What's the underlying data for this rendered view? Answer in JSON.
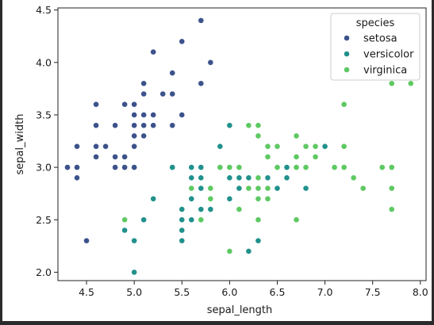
{
  "chart_data": {
    "type": "scatter",
    "xlabel": "sepal_length",
    "ylabel": "sepal_width",
    "xlim": [
      4.2,
      8.06
    ],
    "ylim": [
      1.92,
      4.52
    ],
    "xticks": [
      4.5,
      5.0,
      5.5,
      6.0,
      6.5,
      7.0,
      7.5,
      8.0
    ],
    "yticks": [
      2.0,
      2.5,
      3.0,
      3.5,
      4.0,
      4.5
    ],
    "xtick_labels": [
      "4.5",
      "5.0",
      "5.5",
      "6.0",
      "6.5",
      "7.0",
      "7.5",
      "8.0"
    ],
    "ytick_labels": [
      "2.0",
      "2.5",
      "3.0",
      "3.5",
      "4.0",
      "4.5"
    ],
    "grid": false,
    "legend": {
      "title": "species",
      "placement": "top-right"
    },
    "series": [
      {
        "name": "setosa",
        "color": "#3b528b",
        "points": [
          [
            4.3,
            3.0
          ],
          [
            4.4,
            3.2
          ],
          [
            4.4,
            3.0
          ],
          [
            4.4,
            2.9
          ],
          [
            4.5,
            2.3
          ],
          [
            4.6,
            3.6
          ],
          [
            4.6,
            3.4
          ],
          [
            4.6,
            3.2
          ],
          [
            4.6,
            3.1
          ],
          [
            4.7,
            3.2
          ],
          [
            4.8,
            3.4
          ],
          [
            4.8,
            3.1
          ],
          [
            4.8,
            3.0
          ],
          [
            4.9,
            3.6
          ],
          [
            4.9,
            3.1
          ],
          [
            4.9,
            3.0
          ],
          [
            5.0,
            3.6
          ],
          [
            5.0,
            3.5
          ],
          [
            5.0,
            3.4
          ],
          [
            5.0,
            3.3
          ],
          [
            5.0,
            3.2
          ],
          [
            5.0,
            3.0
          ],
          [
            5.1,
            3.8
          ],
          [
            5.1,
            3.7
          ],
          [
            5.1,
            3.5
          ],
          [
            5.1,
            3.4
          ],
          [
            5.1,
            3.3
          ],
          [
            5.2,
            4.1
          ],
          [
            5.2,
            3.5
          ],
          [
            5.2,
            3.4
          ],
          [
            5.3,
            3.7
          ],
          [
            5.4,
            3.9
          ],
          [
            5.4,
            3.7
          ],
          [
            5.4,
            3.4
          ],
          [
            5.5,
            4.2
          ],
          [
            5.5,
            3.5
          ],
          [
            5.7,
            4.4
          ],
          [
            5.7,
            3.8
          ],
          [
            5.8,
            4.0
          ]
        ]
      },
      {
        "name": "versicolor",
        "color": "#21918c",
        "points": [
          [
            4.9,
            2.4
          ],
          [
            5.0,
            2.3
          ],
          [
            5.0,
            2.0
          ],
          [
            5.1,
            2.5
          ],
          [
            5.2,
            2.7
          ],
          [
            5.4,
            3.0
          ],
          [
            5.5,
            2.6
          ],
          [
            5.5,
            2.5
          ],
          [
            5.5,
            2.4
          ],
          [
            5.5,
            2.3
          ],
          [
            5.6,
            3.0
          ],
          [
            5.6,
            2.9
          ],
          [
            5.6,
            2.7
          ],
          [
            5.6,
            2.5
          ],
          [
            5.7,
            3.0
          ],
          [
            5.7,
            2.9
          ],
          [
            5.7,
            2.8
          ],
          [
            5.7,
            2.6
          ],
          [
            5.8,
            2.7
          ],
          [
            5.8,
            2.6
          ],
          [
            5.9,
            3.2
          ],
          [
            5.9,
            3.0
          ],
          [
            6.0,
            3.4
          ],
          [
            6.0,
            2.9
          ],
          [
            6.0,
            2.7
          ],
          [
            6.0,
            2.2
          ],
          [
            6.1,
            3.0
          ],
          [
            6.1,
            2.9
          ],
          [
            6.1,
            2.8
          ],
          [
            6.2,
            2.9
          ],
          [
            6.2,
            2.2
          ],
          [
            6.3,
            3.3
          ],
          [
            6.3,
            2.5
          ],
          [
            6.3,
            2.3
          ],
          [
            6.4,
            3.2
          ],
          [
            6.4,
            2.9
          ],
          [
            6.5,
            2.8
          ],
          [
            6.6,
            3.0
          ],
          [
            6.6,
            2.9
          ],
          [
            6.7,
            3.1
          ],
          [
            6.7,
            3.0
          ],
          [
            6.8,
            2.8
          ],
          [
            6.9,
            3.1
          ],
          [
            7.0,
            3.2
          ]
        ]
      },
      {
        "name": "virginica",
        "color": "#5ec962",
        "points": [
          [
            4.9,
            2.5
          ],
          [
            5.6,
            2.8
          ],
          [
            5.7,
            2.5
          ],
          [
            5.8,
            2.8
          ],
          [
            5.8,
            2.7
          ],
          [
            5.9,
            3.0
          ],
          [
            6.0,
            3.0
          ],
          [
            6.0,
            2.2
          ],
          [
            6.1,
            3.0
          ],
          [
            6.1,
            2.6
          ],
          [
            6.2,
            3.4
          ],
          [
            6.2,
            2.8
          ],
          [
            6.3,
            3.4
          ],
          [
            6.3,
            3.3
          ],
          [
            6.3,
            2.9
          ],
          [
            6.3,
            2.8
          ],
          [
            6.3,
            2.7
          ],
          [
            6.3,
            2.5
          ],
          [
            6.4,
            3.2
          ],
          [
            6.4,
            3.1
          ],
          [
            6.4,
            2.8
          ],
          [
            6.4,
            2.7
          ],
          [
            6.5,
            3.2
          ],
          [
            6.5,
            3.0
          ],
          [
            6.7,
            3.3
          ],
          [
            6.7,
            3.1
          ],
          [
            6.7,
            3.0
          ],
          [
            6.7,
            2.5
          ],
          [
            6.8,
            3.2
          ],
          [
            6.8,
            3.0
          ],
          [
            6.9,
            3.2
          ],
          [
            6.9,
            3.1
          ],
          [
            7.1,
            3.0
          ],
          [
            7.2,
            3.6
          ],
          [
            7.2,
            3.2
          ],
          [
            7.2,
            3.0
          ],
          [
            7.3,
            2.9
          ],
          [
            7.4,
            2.8
          ],
          [
            7.6,
            3.0
          ],
          [
            7.7,
            3.8
          ],
          [
            7.7,
            3.0
          ],
          [
            7.7,
            2.8
          ],
          [
            7.7,
            2.6
          ],
          [
            7.9,
            3.8
          ]
        ]
      }
    ]
  }
}
